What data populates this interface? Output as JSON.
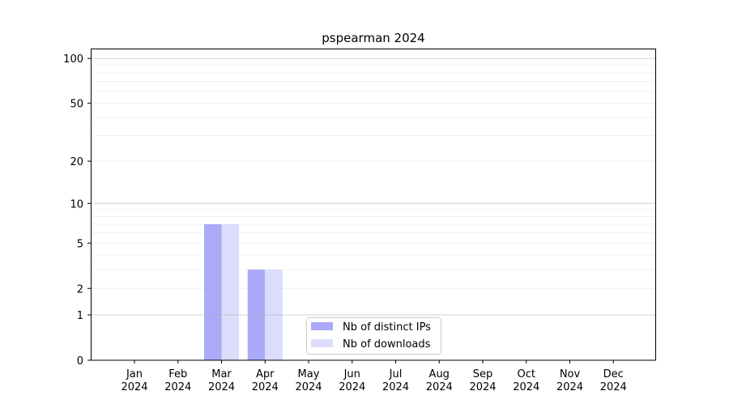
{
  "chart_data": {
    "type": "bar",
    "title": "pspearman 2024",
    "xlabel": "",
    "ylabel": "",
    "yscale": "log(1+y)",
    "ylim": [
      0,
      116
    ],
    "yticks": [
      0,
      1,
      2,
      5,
      10,
      20,
      50,
      100
    ],
    "grid": true,
    "legend_position": "lower-center",
    "categories": [
      "Jan\n2024",
      "Feb\n2024",
      "Mar\n2024",
      "Apr\n2024",
      "May\n2024",
      "Jun\n2024",
      "Jul\n2024",
      "Aug\n2024",
      "Sep\n2024",
      "Oct\n2024",
      "Nov\n2024",
      "Dec\n2024"
    ],
    "series": [
      {
        "name": "Nb of distinct IPs",
        "color": "#aaaaf8",
        "values": [
          0,
          0,
          7,
          3,
          0,
          0,
          0,
          0,
          0,
          0,
          0,
          0
        ]
      },
      {
        "name": "Nb of downloads",
        "color": "#dcdcfc",
        "values": [
          0,
          0,
          7,
          3,
          0,
          0,
          0,
          0,
          0,
          0,
          0,
          0
        ]
      }
    ]
  }
}
